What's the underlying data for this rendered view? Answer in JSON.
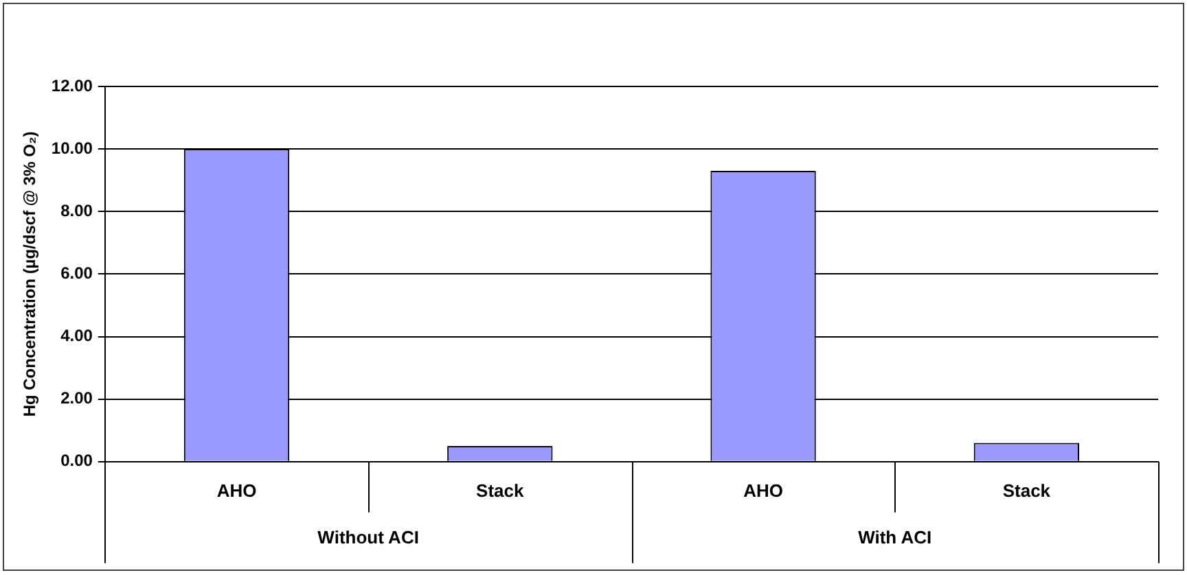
{
  "chart_data": {
    "type": "bar",
    "ylabel": "Hg Concentration (µg/dscf @ 3% O₂)",
    "categories": [
      "AHO",
      "Stack",
      "AHO",
      "Stack"
    ],
    "values": [
      10.0,
      0.5,
      9.3,
      0.6
    ],
    "color": "#9999ff",
    "ylim": [
      0,
      12
    ],
    "yticks": [
      {
        "value": 0,
        "label": "0.00"
      },
      {
        "value": 2,
        "label": "2.00"
      },
      {
        "value": 4,
        "label": "4.00"
      },
      {
        "value": 6,
        "label": "6.00"
      },
      {
        "value": 8,
        "label": "8.00"
      },
      {
        "value": 10,
        "label": "10.00"
      },
      {
        "value": 12,
        "label": "12.00"
      }
    ],
    "grid": "y",
    "legend": false,
    "annotations": [
      "Without ACI",
      "With ACI"
    ]
  }
}
